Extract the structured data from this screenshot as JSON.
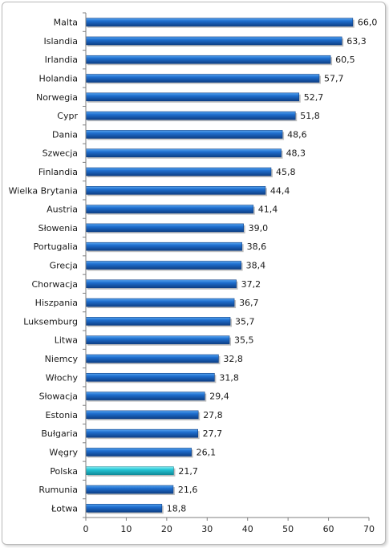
{
  "chart_data": {
    "type": "bar",
    "orientation": "horizontal",
    "categories": [
      "Malta",
      "Islandia",
      "Irlandia",
      "Holandia",
      "Norwegia",
      "Cypr",
      "Dania",
      "Szwecja",
      "Finlandia",
      "Wielka Brytania",
      "Austria",
      "Słowenia",
      "Portugalia",
      "Grecja",
      "Chorwacja",
      "Hiszpania",
      "Luksemburg",
      "Litwa",
      "Niemcy",
      "Włochy",
      "Słowacja",
      "Estonia",
      "Bułgaria",
      "Węgry",
      "Polska",
      "Rumunia",
      "Łotwa"
    ],
    "values": [
      66.0,
      63.3,
      60.5,
      57.7,
      52.7,
      51.8,
      48.6,
      48.3,
      45.8,
      44.4,
      41.4,
      39.0,
      38.6,
      38.4,
      37.2,
      36.7,
      35.7,
      35.5,
      32.8,
      31.8,
      29.4,
      27.8,
      27.7,
      26.1,
      21.7,
      21.6,
      18.8
    ],
    "value_labels": [
      "66,0",
      "63,3",
      "60,5",
      "57,7",
      "52,7",
      "51,8",
      "48,6",
      "48,3",
      "45,8",
      "44,4",
      "41,4",
      "39,0",
      "38,6",
      "38,4",
      "37,2",
      "36,7",
      "35,7",
      "35,5",
      "32,8",
      "31,8",
      "29,4",
      "27,8",
      "27,7",
      "26,1",
      "21,7",
      "21,6",
      "18,8"
    ],
    "highlight": "Polska",
    "xlim": [
      0,
      70
    ],
    "xticks": [
      0,
      10,
      20,
      30,
      40,
      50,
      60,
      70
    ],
    "title": "",
    "xlabel": "",
    "ylabel": "",
    "grid": false,
    "colors": {
      "bar": "#1f6fcf",
      "bar_light": "#5aa6f0",
      "bar_dark": "#0d3f86",
      "highlight": "#26c6d6",
      "highlight_light": "#8cf0f5",
      "highlight_dark": "#0f8a98"
    }
  }
}
